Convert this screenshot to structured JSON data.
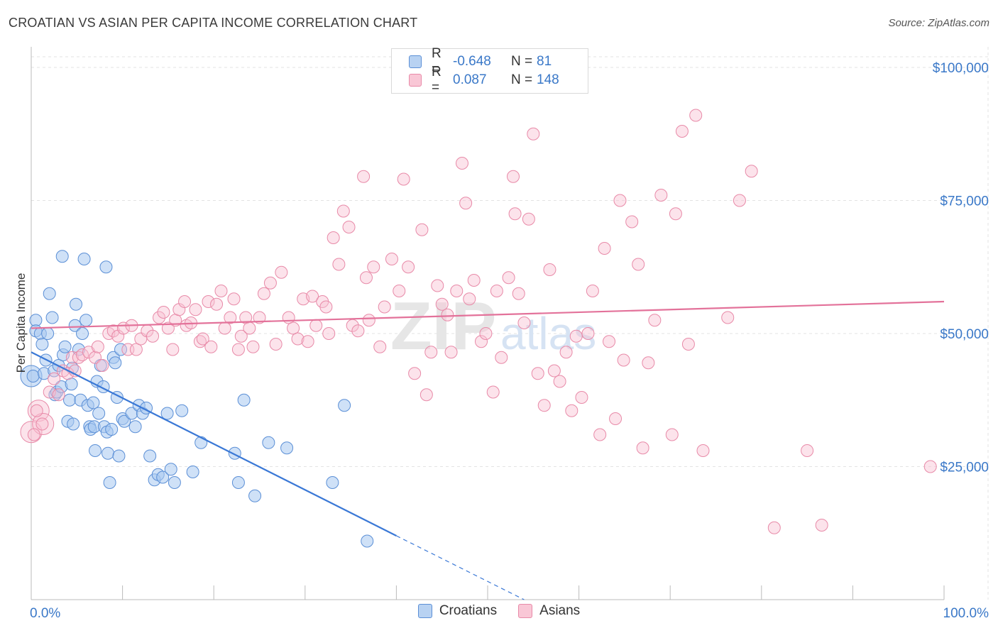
{
  "header": {
    "title": "CROATIAN VS ASIAN PER CAPITA INCOME CORRELATION CHART",
    "source": "Source: ZipAtlas.com"
  },
  "legend": {
    "rows": [
      {
        "series": "Croatians",
        "r_label": "R =",
        "r_value": "-0.648",
        "n_label": "N =",
        "n_value": "81",
        "fill": "#b8d2f2",
        "stroke": "#5b8fd6"
      },
      {
        "series": "Asians",
        "r_label": "R =",
        "r_value": "0.087",
        "n_label": "N =",
        "n_value": "148",
        "fill": "#f9c7d6",
        "stroke": "#e88aa8"
      }
    ],
    "bottom": [
      "Croatians",
      "Asians"
    ]
  },
  "watermark": {
    "zip": "ZIP",
    "atlas": "atlas"
  },
  "chart_data": {
    "type": "scatter",
    "title": "CROATIAN VS ASIAN PER CAPITA INCOME CORRELATION CHART",
    "xlabel": "",
    "ylabel": "Per Capita Income",
    "xlim": [
      0,
      100
    ],
    "ylim": [
      0,
      102000
    ],
    "x_tick_labels": [
      "0.0%",
      "100.0%"
    ],
    "y_ticks": [
      25000,
      50000,
      75000,
      100000
    ],
    "y_tick_labels": [
      "$25,000",
      "$50,000",
      "$75,000",
      "$100,000"
    ],
    "grid": true,
    "colors": {
      "croatians": "#3a78d6",
      "asians": "#e3729a"
    },
    "series": [
      {
        "name": "Croatians",
        "trend": {
          "x0": 0,
          "y0": 46500,
          "x1": 40,
          "y1": 12000,
          "dashed_to_x": 54,
          "dashed_to_y": 0
        },
        "points": [
          [
            0.2,
            42000
          ],
          [
            0.5,
            52500
          ],
          [
            0.5,
            50500
          ],
          [
            1.0,
            50000
          ],
          [
            1.2,
            48000
          ],
          [
            1.4,
            42500
          ],
          [
            1.6,
            45000
          ],
          [
            1.8,
            50000
          ],
          [
            2.0,
            57500
          ],
          [
            2.3,
            53000
          ],
          [
            2.5,
            43000
          ],
          [
            2.6,
            38500
          ],
          [
            2.8,
            39000
          ],
          [
            3.0,
            44000
          ],
          [
            3.3,
            40000
          ],
          [
            3.4,
            64500
          ],
          [
            3.5,
            46000
          ],
          [
            3.7,
            47500
          ],
          [
            4.0,
            33500
          ],
          [
            4.2,
            37500
          ],
          [
            4.4,
            40500
          ],
          [
            4.5,
            43500
          ],
          [
            4.6,
            33000
          ],
          [
            4.8,
            51500
          ],
          [
            4.9,
            55500
          ],
          [
            5.2,
            47000
          ],
          [
            5.4,
            37500
          ],
          [
            5.6,
            50000
          ],
          [
            5.8,
            64000
          ],
          [
            6.0,
            52500
          ],
          [
            6.2,
            36500
          ],
          [
            6.4,
            32500
          ],
          [
            6.5,
            32000
          ],
          [
            6.8,
            37000
          ],
          [
            6.9,
            32500
          ],
          [
            7.0,
            28000
          ],
          [
            7.2,
            41000
          ],
          [
            7.4,
            35000
          ],
          [
            7.6,
            44000
          ],
          [
            7.9,
            40000
          ],
          [
            8.0,
            32500
          ],
          [
            8.2,
            62500
          ],
          [
            8.3,
            31500
          ],
          [
            8.4,
            27500
          ],
          [
            8.6,
            22000
          ],
          [
            8.8,
            32000
          ],
          [
            9.0,
            45500
          ],
          [
            9.2,
            44500
          ],
          [
            9.4,
            38000
          ],
          [
            9.6,
            27000
          ],
          [
            9.8,
            47000
          ],
          [
            10.0,
            34000
          ],
          [
            10.2,
            33500
          ],
          [
            11.0,
            35000
          ],
          [
            11.4,
            32500
          ],
          [
            11.8,
            36500
          ],
          [
            12.2,
            35000
          ],
          [
            12.6,
            36000
          ],
          [
            13.0,
            27000
          ],
          [
            13.5,
            22500
          ],
          [
            13.9,
            23500
          ],
          [
            14.4,
            23000
          ],
          [
            14.9,
            35000
          ],
          [
            15.3,
            24500
          ],
          [
            15.7,
            22000
          ],
          [
            16.5,
            35500
          ],
          [
            17.7,
            24000
          ],
          [
            18.6,
            29500
          ],
          [
            22.3,
            27500
          ],
          [
            22.7,
            22000
          ],
          [
            23.3,
            37500
          ],
          [
            24.5,
            19500
          ],
          [
            26.0,
            29500
          ],
          [
            28.0,
            28500
          ],
          [
            33.0,
            22000
          ],
          [
            34.3,
            36500
          ],
          [
            36.8,
            11000
          ]
        ],
        "large_points": [
          [
            0.0,
            42000
          ]
        ]
      },
      {
        "name": "Asians",
        "trend": {
          "x0": 0,
          "y0": 51000,
          "x1": 100,
          "y1": 56000
        },
        "points": [
          [
            0.3,
            31000
          ],
          [
            0.6,
            35500
          ],
          [
            1.2,
            33000
          ],
          [
            2.0,
            39000
          ],
          [
            2.5,
            41500
          ],
          [
            3.0,
            38500
          ],
          [
            3.5,
            43000
          ],
          [
            4.0,
            42500
          ],
          [
            4.5,
            45500
          ],
          [
            4.8,
            43000
          ],
          [
            5.2,
            45500
          ],
          [
            5.6,
            46000
          ],
          [
            6.3,
            46500
          ],
          [
            7.0,
            45500
          ],
          [
            7.3,
            47500
          ],
          [
            7.8,
            44000
          ],
          [
            8.5,
            50000
          ],
          [
            9.0,
            50500
          ],
          [
            9.5,
            49500
          ],
          [
            10.1,
            51000
          ],
          [
            10.6,
            47000
          ],
          [
            11.0,
            51500
          ],
          [
            11.5,
            47000
          ],
          [
            12.0,
            49000
          ],
          [
            12.7,
            50500
          ],
          [
            13.3,
            49500
          ],
          [
            14.0,
            53000
          ],
          [
            14.5,
            54000
          ],
          [
            15.0,
            51000
          ],
          [
            15.5,
            47000
          ],
          [
            15.8,
            52500
          ],
          [
            16.2,
            54500
          ],
          [
            16.8,
            56000
          ],
          [
            17.0,
            51500
          ],
          [
            17.5,
            52000
          ],
          [
            18.0,
            54500
          ],
          [
            18.5,
            48500
          ],
          [
            18.8,
            49000
          ],
          [
            19.4,
            56000
          ],
          [
            19.7,
            47500
          ],
          [
            20.3,
            55500
          ],
          [
            20.8,
            58000
          ],
          [
            21.2,
            51000
          ],
          [
            21.8,
            53000
          ],
          [
            22.2,
            56500
          ],
          [
            22.7,
            47000
          ],
          [
            23.0,
            49500
          ],
          [
            23.5,
            53000
          ],
          [
            23.9,
            51000
          ],
          [
            24.3,
            47500
          ],
          [
            25.0,
            53000
          ],
          [
            25.5,
            57500
          ],
          [
            26.2,
            59500
          ],
          [
            26.8,
            48000
          ],
          [
            27.4,
            61500
          ],
          [
            28.2,
            53000
          ],
          [
            28.7,
            51000
          ],
          [
            29.2,
            49000
          ],
          [
            29.8,
            56500
          ],
          [
            30.3,
            48500
          ],
          [
            30.8,
            57000
          ],
          [
            31.2,
            51500
          ],
          [
            31.9,
            56000
          ],
          [
            32.3,
            55000
          ],
          [
            32.6,
            50000
          ],
          [
            33.1,
            68000
          ],
          [
            33.7,
            63000
          ],
          [
            34.2,
            73000
          ],
          [
            34.8,
            70000
          ],
          [
            35.2,
            51500
          ],
          [
            35.8,
            50500
          ],
          [
            36.4,
            79500
          ],
          [
            36.7,
            60500
          ],
          [
            37.0,
            52500
          ],
          [
            37.5,
            62500
          ],
          [
            38.2,
            47500
          ],
          [
            38.7,
            55000
          ],
          [
            39.5,
            64000
          ],
          [
            40.3,
            58000
          ],
          [
            40.8,
            79000
          ],
          [
            41.3,
            62500
          ],
          [
            42.0,
            42500
          ],
          [
            42.8,
            69500
          ],
          [
            43.3,
            38500
          ],
          [
            43.8,
            46500
          ],
          [
            44.5,
            59000
          ],
          [
            45.0,
            55500
          ],
          [
            45.6,
            53500
          ],
          [
            46.0,
            46500
          ],
          [
            46.6,
            58000
          ],
          [
            47.2,
            82000
          ],
          [
            47.6,
            74500
          ],
          [
            48.0,
            56500
          ],
          [
            48.5,
            60000
          ],
          [
            49.3,
            48500
          ],
          [
            49.8,
            50000
          ],
          [
            50.6,
            39000
          ],
          [
            51.0,
            58000
          ],
          [
            51.5,
            45500
          ],
          [
            52.3,
            60500
          ],
          [
            52.8,
            79500
          ],
          [
            53.0,
            72500
          ],
          [
            53.4,
            57500
          ],
          [
            54.0,
            52000
          ],
          [
            54.5,
            71500
          ],
          [
            55.0,
            87500
          ],
          [
            55.5,
            42500
          ],
          [
            56.2,
            36500
          ],
          [
            56.8,
            62000
          ],
          [
            57.3,
            43000
          ],
          [
            57.9,
            41000
          ],
          [
            58.6,
            46500
          ],
          [
            59.2,
            35500
          ],
          [
            59.7,
            49500
          ],
          [
            60.3,
            38000
          ],
          [
            61.0,
            50000
          ],
          [
            61.5,
            58000
          ],
          [
            62.3,
            31000
          ],
          [
            62.8,
            66000
          ],
          [
            63.3,
            48500
          ],
          [
            64.0,
            34000
          ],
          [
            64.5,
            75000
          ],
          [
            64.9,
            45000
          ],
          [
            65.8,
            71000
          ],
          [
            66.5,
            63000
          ],
          [
            67.0,
            28500
          ],
          [
            67.6,
            44500
          ],
          [
            68.3,
            52500
          ],
          [
            69.0,
            76000
          ],
          [
            70.2,
            31000
          ],
          [
            70.6,
            72500
          ],
          [
            71.3,
            88000
          ],
          [
            72.0,
            48000
          ],
          [
            72.8,
            91000
          ],
          [
            73.6,
            28000
          ],
          [
            76.3,
            53000
          ],
          [
            77.6,
            75000
          ],
          [
            78.9,
            80500
          ],
          [
            81.4,
            13500
          ],
          [
            85.0,
            28000
          ],
          [
            86.6,
            14000
          ],
          [
            98.5,
            25000
          ]
        ],
        "large_points": [
          [
            0.0,
            31500
          ],
          [
            0.8,
            35500
          ],
          [
            1.3,
            33000
          ]
        ]
      }
    ]
  }
}
